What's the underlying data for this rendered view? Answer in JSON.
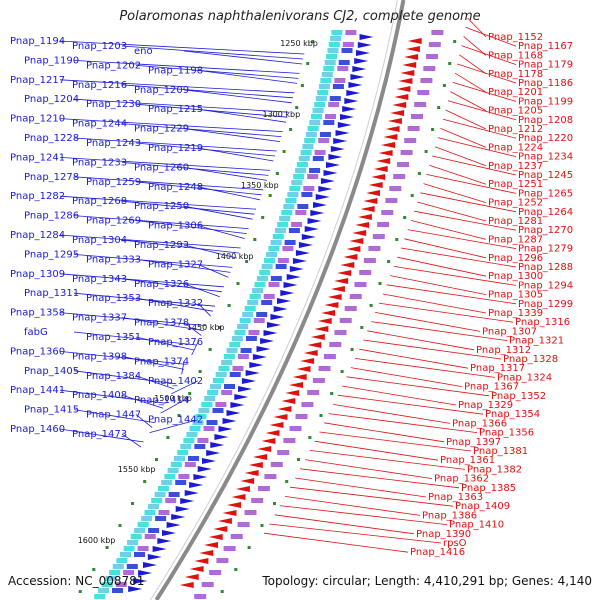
{
  "title": "Polaromonas naphthalenivorans CJ2, complete genome",
  "footer": {
    "accession": "Accession: NC_008781",
    "topology": "Topology: circular; Length: 4,410,291 bp; Genes: 4,140"
  },
  "colors": {
    "forward": "#1a1ad6",
    "reverse": "#e01010",
    "backbone": "#8a8a8a",
    "tick": "#2e8b2e"
  },
  "scale_ticks": [
    "1250 kbp",
    "1300 kbp",
    "1350 kbp",
    "1400 kbp",
    "1450 kbp",
    "1500 kbp",
    "1550 kbp",
    "1600 kbp"
  ],
  "forward_genes": [
    "Pnap_1194",
    "Pnap_1203",
    "eno",
    "Pnap_1190",
    "Pnap_1202",
    "Pnap_1198",
    "Pnap_1217",
    "Pnap_1216",
    "Pnap_1209",
    "Pnap_1204",
    "Pnap_1230",
    "Pnap_1215",
    "Pnap_1210",
    "Pnap_1244",
    "Pnap_1229",
    "Pnap_1228",
    "Pnap_1243",
    "Pnap_1219",
    "Pnap_1241",
    "Pnap_1233",
    "Pnap_1260",
    "Pnap_1278",
    "Pnap_1259",
    "Pnap_1248",
    "Pnap_1282",
    "Pnap_1268",
    "Pnap_1250",
    "Pnap_1286",
    "Pnap_1269",
    "Pnap_1306",
    "Pnap_1284",
    "Pnap_1304",
    "Pnap_1293",
    "Pnap_1295",
    "Pnap_1333",
    "Pnap_1327",
    "Pnap_1309",
    "Pnap_1343",
    "Pnap_1326",
    "Pnap_1311",
    "Pnap_1353",
    "Pnap_1332",
    "Pnap_1358",
    "Pnap_1337",
    "Pnap_1378",
    "fabG",
    "Pnap_1351",
    "Pnap_1376",
    "Pnap_1360",
    "Pnap_1398",
    "Pnap_1374",
    "Pnap_1405",
    "Pnap_1384",
    "Pnap_1402",
    "Pnap_1441",
    "Pnap_1408",
    "Pnap_1414",
    "Pnap_1415",
    "Pnap_1447",
    "Pnap_1442",
    "Pnap_1460",
    "Pnap_1473"
  ],
  "reverse_genes": [
    "Pnap_1152",
    "Pnap_1167",
    "Pnap_1168",
    "Pnap_1179",
    "Pnap_1178",
    "Pnap_1186",
    "Pnap_1201",
    "Pnap_1199",
    "Pnap_1205",
    "Pnap_1208",
    "Pnap_1212",
    "Pnap_1220",
    "Pnap_1224",
    "Pnap_1234",
    "Pnap_1237",
    "Pnap_1245",
    "Pnap_1251",
    "Pnap_1265",
    "Pnap_1252",
    "Pnap_1264",
    "Pnap_1281",
    "Pnap_1270",
    "Pnap_1287",
    "Pnap_1279",
    "Pnap_1296",
    "Pnap_1288",
    "Pnap_1300",
    "Pnap_1294",
    "Pnap_1305",
    "Pnap_1299",
    "Pnap_1339",
    "Pnap_1316",
    "Pnap_1307",
    "Pnap_1321",
    "Pnap_1312",
    "Pnap_1328",
    "Pnap_1317",
    "Pnap_1324",
    "Pnap_1367",
    "Pnap_1352",
    "Pnap_1329",
    "Pnap_1354",
    "Pnap_1366",
    "Pnap_1356",
    "Pnap_1397",
    "Pnap_1381",
    "Pnap_1361",
    "Pnap_1382",
    "Pnap_1362",
    "Pnap_1385",
    "Pnap_1363",
    "Pnap_1409",
    "Pnap_1386",
    "Pnap_1410",
    "Pnap_1390",
    "rpsO",
    "Pnap_1416"
  ]
}
